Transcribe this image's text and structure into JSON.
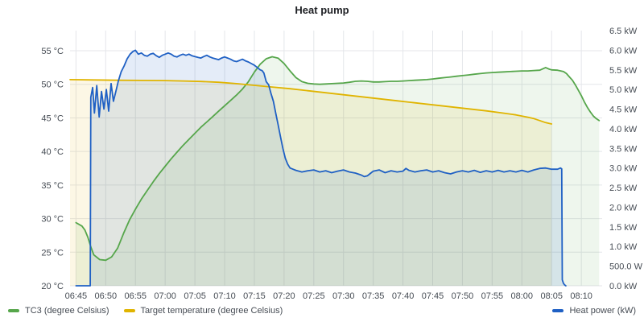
{
  "panel": {
    "title": "Heat pump"
  },
  "legend": {
    "items": [
      {
        "label": "TC3 (degree Celsius)",
        "color": "#56a64b"
      },
      {
        "label": "Target temperature (degree Celsius)",
        "color": "#e0b400"
      },
      {
        "label": "Heat power (kW)",
        "color": "#1f60c4"
      }
    ]
  },
  "chart_data": {
    "type": "line",
    "title": "Heat pump",
    "x_domain": [
      404,
      493.5
    ],
    "x_ticks": [
      [
        405,
        "06:45"
      ],
      [
        410,
        "06:50"
      ],
      [
        415,
        "06:55"
      ],
      [
        420,
        "07:00"
      ],
      [
        425,
        "07:05"
      ],
      [
        430,
        "07:10"
      ],
      [
        435,
        "07:15"
      ],
      [
        440,
        "07:20"
      ],
      [
        445,
        "07:25"
      ],
      [
        450,
        "07:30"
      ],
      [
        455,
        "07:35"
      ],
      [
        460,
        "07:40"
      ],
      [
        465,
        "07:45"
      ],
      [
        470,
        "07:50"
      ],
      [
        475,
        "07:55"
      ],
      [
        480,
        "08:00"
      ],
      [
        485,
        "08:05"
      ],
      [
        490,
        "08:10"
      ]
    ],
    "y_left": {
      "unit": "degree Celsius",
      "min": 20,
      "max": 58,
      "ticks": [
        [
          20,
          "20 °C"
        ],
        [
          25,
          "25 °C"
        ],
        [
          30,
          "30 °C"
        ],
        [
          35,
          "35 °C"
        ],
        [
          40,
          "40 °C"
        ],
        [
          45,
          "45 °C"
        ],
        [
          50,
          "50 °C"
        ],
        [
          55,
          "55 °C"
        ]
      ]
    },
    "y_right": {
      "unit": "kW",
      "min": 0,
      "max": 6.5,
      "ticks": [
        [
          0,
          "0.0 kW"
        ],
        [
          0.5,
          "500.0 W"
        ],
        [
          1,
          "1.0 kW"
        ],
        [
          1.5,
          "1.5 kW"
        ],
        [
          2,
          "2.0 kW"
        ],
        [
          2.5,
          "2.5 kW"
        ],
        [
          3,
          "3.0 kW"
        ],
        [
          3.5,
          "3.5 kW"
        ],
        [
          4,
          "4.0 kW"
        ],
        [
          4.5,
          "4.5 kW"
        ],
        [
          5,
          "5.0 kW"
        ],
        [
          5.5,
          "5.5 kW"
        ],
        [
          6,
          "6.0 kW"
        ],
        [
          6.5,
          "6.5 kW"
        ]
      ]
    },
    "style": {
      "grid": "#e4e6ea",
      "tick_color": "#464c54",
      "line_width": 1.8
    },
    "grid": true,
    "legend_position": "bottom",
    "series": [
      {
        "name": "TC3 (degree Celsius)",
        "axis": "left",
        "color": "#56a64b",
        "fill": "rgba(86,166,75,0.10)",
        "points": [
          [
            405,
            29.4
          ],
          [
            406,
            28.9
          ],
          [
            406.5,
            28.3
          ],
          [
            407,
            27.2
          ],
          [
            407.5,
            25.8
          ],
          [
            408,
            24.6
          ],
          [
            409,
            23.9
          ],
          [
            410,
            23.8
          ],
          [
            411,
            24.3
          ],
          [
            412,
            25.6
          ],
          [
            413,
            27.8
          ],
          [
            414,
            29.8
          ],
          [
            415,
            31.4
          ],
          [
            416,
            32.9
          ],
          [
            417,
            34.2
          ],
          [
            418,
            35.5
          ],
          [
            419,
            36.7
          ],
          [
            420,
            37.8
          ],
          [
            421,
            38.9
          ],
          [
            422,
            39.9
          ],
          [
            423,
            40.9
          ],
          [
            424,
            41.8
          ],
          [
            425,
            42.7
          ],
          [
            426,
            43.6
          ],
          [
            427,
            44.4
          ],
          [
            428,
            45.2
          ],
          [
            429,
            46.0
          ],
          [
            430,
            46.8
          ],
          [
            431,
            47.6
          ],
          [
            432,
            48.4
          ],
          [
            433,
            49.3
          ],
          [
            434,
            50.4
          ],
          [
            435,
            51.8
          ],
          [
            436,
            53.0
          ],
          [
            437,
            53.8
          ],
          [
            438,
            54.1
          ],
          [
            439,
            53.9
          ],
          [
            440,
            53.1
          ],
          [
            441,
            52.0
          ],
          [
            442,
            51.0
          ],
          [
            443,
            50.4
          ],
          [
            444,
            50.15
          ],
          [
            445,
            50.05
          ],
          [
            446,
            50.0
          ],
          [
            447,
            50.05
          ],
          [
            448,
            50.1
          ],
          [
            449,
            50.15
          ],
          [
            450,
            50.2
          ],
          [
            451,
            50.3
          ],
          [
            452,
            50.45
          ],
          [
            453,
            50.5
          ],
          [
            454,
            50.45
          ],
          [
            455,
            50.35
          ],
          [
            456,
            50.35
          ],
          [
            457,
            50.4
          ],
          [
            458,
            50.45
          ],
          [
            459,
            50.45
          ],
          [
            460,
            50.5
          ],
          [
            461,
            50.55
          ],
          [
            462,
            50.6
          ],
          [
            463,
            50.65
          ],
          [
            464,
            50.7
          ],
          [
            465,
            50.8
          ],
          [
            466,
            50.9
          ],
          [
            467,
            51.0
          ],
          [
            468,
            51.1
          ],
          [
            469,
            51.2
          ],
          [
            470,
            51.3
          ],
          [
            471,
            51.4
          ],
          [
            472,
            51.5
          ],
          [
            473,
            51.6
          ],
          [
            474,
            51.7
          ],
          [
            475,
            51.75
          ],
          [
            476,
            51.8
          ],
          [
            477,
            51.85
          ],
          [
            478,
            51.9
          ],
          [
            479,
            51.95
          ],
          [
            480,
            52.0
          ],
          [
            481,
            52.0
          ],
          [
            482,
            52.05
          ],
          [
            483,
            52.1
          ],
          [
            484,
            52.5
          ],
          [
            484.5,
            52.3
          ],
          [
            485,
            52.15
          ],
          [
            486,
            52.1
          ],
          [
            487,
            51.9
          ],
          [
            487.5,
            51.6
          ],
          [
            488,
            51.1
          ],
          [
            488.5,
            50.6
          ],
          [
            489,
            49.9
          ],
          [
            489.5,
            49.1
          ],
          [
            490,
            48.3
          ],
          [
            490.5,
            47.4
          ],
          [
            491,
            46.6
          ],
          [
            491.5,
            45.9
          ],
          [
            492,
            45.3
          ],
          [
            492.5,
            44.9
          ],
          [
            493,
            44.6
          ]
        ]
      },
      {
        "name": "Target temperature (degree Celsius)",
        "axis": "left",
        "color": "#e0b400",
        "fill": "rgba(224,180,0,0.10)",
        "points": [
          [
            404,
            50.7
          ],
          [
            408,
            50.65
          ],
          [
            412,
            50.6
          ],
          [
            416,
            50.58
          ],
          [
            420,
            50.55
          ],
          [
            423,
            50.5
          ],
          [
            426,
            50.42
          ],
          [
            429,
            50.3
          ],
          [
            432,
            50.1
          ],
          [
            435,
            49.85
          ],
          [
            438,
            49.6
          ],
          [
            441,
            49.35
          ],
          [
            444,
            49.05
          ],
          [
            447,
            48.75
          ],
          [
            450,
            48.45
          ],
          [
            453,
            48.15
          ],
          [
            456,
            47.85
          ],
          [
            459,
            47.55
          ],
          [
            462,
            47.25
          ],
          [
            465,
            46.95
          ],
          [
            468,
            46.65
          ],
          [
            471,
            46.35
          ],
          [
            474,
            46.05
          ],
          [
            477,
            45.7
          ],
          [
            479,
            45.45
          ],
          [
            481,
            45.1
          ],
          [
            482,
            44.9
          ],
          [
            483,
            44.6
          ],
          [
            484,
            44.3
          ],
          [
            485,
            44.1
          ]
        ]
      },
      {
        "name": "Heat power (kW)",
        "axis": "right",
        "color": "#1f60c4",
        "fill": "rgba(31,96,196,0.12)",
        "points": [
          [
            405,
            0
          ],
          [
            406,
            0
          ],
          [
            407,
            0
          ],
          [
            407.4,
            0
          ],
          [
            407.5,
            4.8
          ],
          [
            407.8,
            5.05
          ],
          [
            408.1,
            4.4
          ],
          [
            408.5,
            5.1
          ],
          [
            408.9,
            4.3
          ],
          [
            409.3,
            4.95
          ],
          [
            409.7,
            4.5
          ],
          [
            410.1,
            5.0
          ],
          [
            410.5,
            4.45
          ],
          [
            410.9,
            5.15
          ],
          [
            411.3,
            4.7
          ],
          [
            411.7,
            4.95
          ],
          [
            412.1,
            5.2
          ],
          [
            412.6,
            5.45
          ],
          [
            413.1,
            5.6
          ],
          [
            413.6,
            5.78
          ],
          [
            414.1,
            5.9
          ],
          [
            414.6,
            5.97
          ],
          [
            415,
            6.0
          ],
          [
            415.5,
            5.9
          ],
          [
            416,
            5.93
          ],
          [
            416.5,
            5.87
          ],
          [
            417,
            5.85
          ],
          [
            417.5,
            5.9
          ],
          [
            418,
            5.92
          ],
          [
            418.5,
            5.86
          ],
          [
            419,
            5.82
          ],
          [
            419.5,
            5.87
          ],
          [
            420,
            5.9
          ],
          [
            420.5,
            5.93
          ],
          [
            421,
            5.9
          ],
          [
            421.5,
            5.85
          ],
          [
            422,
            5.83
          ],
          [
            422.5,
            5.87
          ],
          [
            423,
            5.9
          ],
          [
            423.5,
            5.87
          ],
          [
            424,
            5.9
          ],
          [
            424.5,
            5.86
          ],
          [
            425,
            5.84
          ],
          [
            425.5,
            5.82
          ],
          [
            426,
            5.8
          ],
          [
            426.5,
            5.84
          ],
          [
            427,
            5.87
          ],
          [
            427.5,
            5.83
          ],
          [
            428,
            5.8
          ],
          [
            428.5,
            5.78
          ],
          [
            429,
            5.76
          ],
          [
            429.5,
            5.8
          ],
          [
            430,
            5.83
          ],
          [
            430.5,
            5.8
          ],
          [
            431,
            5.77
          ],
          [
            431.5,
            5.73
          ],
          [
            432,
            5.71
          ],
          [
            432.5,
            5.74
          ],
          [
            433,
            5.77
          ],
          [
            433.5,
            5.73
          ],
          [
            434,
            5.7
          ],
          [
            434.5,
            5.66
          ],
          [
            435,
            5.62
          ],
          [
            435.5,
            5.56
          ],
          [
            436,
            5.5
          ],
          [
            436.3,
            5.48
          ],
          [
            436.6,
            5.42
          ],
          [
            437,
            5.2
          ],
          [
            437.4,
            5.12
          ],
          [
            437.8,
            4.9
          ],
          [
            438.2,
            4.7
          ],
          [
            438.6,
            4.4
          ],
          [
            439,
            4.1
          ],
          [
            439.4,
            3.8
          ],
          [
            439.8,
            3.5
          ],
          [
            440.2,
            3.25
          ],
          [
            440.6,
            3.1
          ],
          [
            441,
            3.0
          ],
          [
            441.5,
            2.97
          ],
          [
            442,
            2.94
          ],
          [
            443,
            2.9
          ],
          [
            444,
            2.93
          ],
          [
            445,
            2.95
          ],
          [
            446,
            2.9
          ],
          [
            447,
            2.93
          ],
          [
            448,
            2.88
          ],
          [
            449,
            2.92
          ],
          [
            450,
            2.95
          ],
          [
            451,
            2.9
          ],
          [
            452,
            2.87
          ],
          [
            453,
            2.82
          ],
          [
            453.5,
            2.78
          ],
          [
            454,
            2.8
          ],
          [
            454.5,
            2.86
          ],
          [
            455,
            2.92
          ],
          [
            456,
            2.95
          ],
          [
            457,
            2.88
          ],
          [
            458,
            2.93
          ],
          [
            459,
            2.9
          ],
          [
            460,
            2.92
          ],
          [
            460.5,
            2.99
          ],
          [
            461,
            2.94
          ],
          [
            462,
            2.9
          ],
          [
            463,
            2.93
          ],
          [
            464,
            2.95
          ],
          [
            465,
            2.9
          ],
          [
            466,
            2.93
          ],
          [
            467,
            2.88
          ],
          [
            468,
            2.85
          ],
          [
            469,
            2.9
          ],
          [
            470,
            2.93
          ],
          [
            471,
            2.9
          ],
          [
            472,
            2.94
          ],
          [
            473,
            2.89
          ],
          [
            474,
            2.93
          ],
          [
            475,
            2.9
          ],
          [
            476,
            2.94
          ],
          [
            477,
            2.9
          ],
          [
            478,
            2.93
          ],
          [
            479,
            2.9
          ],
          [
            480,
            2.94
          ],
          [
            481,
            2.9
          ],
          [
            482,
            2.95
          ],
          [
            483,
            2.99
          ],
          [
            484,
            3.0
          ],
          [
            485,
            2.97
          ],
          [
            486,
            2.97
          ],
          [
            486.5,
            3.0
          ],
          [
            486.7,
            2.98
          ],
          [
            486.8,
            0.15
          ],
          [
            487,
            0.06
          ],
          [
            487.2,
            0.02
          ],
          [
            487.4,
            0
          ]
        ]
      }
    ]
  }
}
